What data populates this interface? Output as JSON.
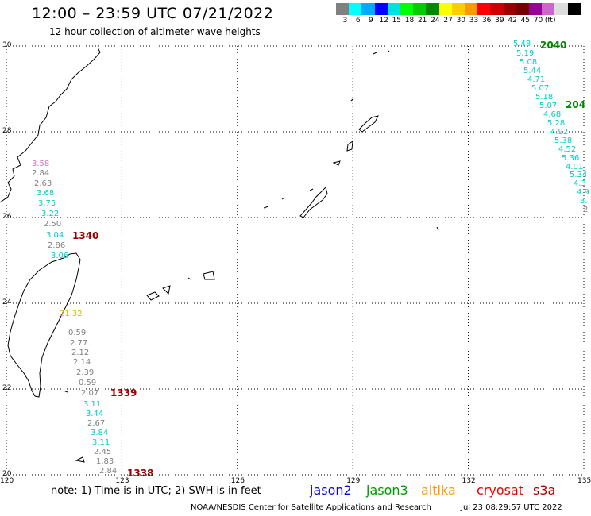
{
  "header": {
    "title": "12:00 – 23:59 UTC 07/21/2022",
    "subtitle": "12 hour collection of altimeter wave heights"
  },
  "legend": {
    "unit": "(ft)",
    "colors": [
      "#808080",
      "#00ffff",
      "#00aaff",
      "#0000ff",
      "#00e0e0",
      "#00ff00",
      "#00cc00",
      "#008800",
      "#ffff00",
      "#ffcc00",
      "#ff9900",
      "#ff0000",
      "#cc0000",
      "#990000",
      "#770000",
      "#990099",
      "#cc66cc",
      "#dddddd",
      "#000000"
    ],
    "labels": [
      "3",
      "6",
      "9",
      "12",
      "15",
      "18",
      "21",
      "24",
      "27",
      "30",
      "33",
      "36",
      "39",
      "42",
      "45",
      "70"
    ]
  },
  "axes": {
    "lon_labels": [
      "120",
      "123",
      "126",
      "129",
      "132",
      "135"
    ],
    "lat_labels": [
      "30",
      "28",
      "26",
      "24",
      "22",
      "20"
    ]
  },
  "passes": [
    {
      "label": "1340",
      "color": "#990000"
    },
    {
      "label": "1339",
      "color": "#990000"
    },
    {
      "label": "1338",
      "color": "#990000"
    },
    {
      "label": "2040",
      "color": "#008800"
    },
    {
      "label": "204",
      "color": "#008800"
    }
  ],
  "measurements_left": [
    {
      "v": "3.58",
      "c": "#cc77cc"
    },
    {
      "v": "2.84",
      "c": "#808080"
    },
    {
      "v": "2.63",
      "c": "#808080"
    },
    {
      "v": "3.68",
      "c": "#00cccc"
    },
    {
      "v": "3.75",
      "c": "#00cccc"
    },
    {
      "v": "3.22",
      "c": "#00cccc"
    },
    {
      "v": "2.50",
      "c": "#808080"
    },
    {
      "v": "3.04",
      "c": "#00cccc"
    },
    {
      "v": "2.86",
      "c": "#808080"
    },
    {
      "v": "3.06",
      "c": "#00cccc"
    },
    {
      "v": "21.32",
      "c": "#ddbb00"
    },
    {
      "v": "0.59",
      "c": "#808080"
    },
    {
      "v": "2.77",
      "c": "#808080"
    },
    {
      "v": "2.12",
      "c": "#808080"
    },
    {
      "v": "2.14",
      "c": "#808080"
    },
    {
      "v": "2.39",
      "c": "#808080"
    },
    {
      "v": "0.59",
      "c": "#808080"
    },
    {
      "v": "2.07",
      "c": "#808080"
    },
    {
      "v": "3.11",
      "c": "#00cccc"
    },
    {
      "v": "3.44",
      "c": "#00cccc"
    },
    {
      "v": "2.67",
      "c": "#808080"
    },
    {
      "v": "3.84",
      "c": "#00cccc"
    },
    {
      "v": "3.11",
      "c": "#00cccc"
    },
    {
      "v": "2.45",
      "c": "#808080"
    },
    {
      "v": "1.83",
      "c": "#808080"
    },
    {
      "v": "2.84",
      "c": "#808080"
    }
  ],
  "measurements_right": [
    {
      "v": "5.48",
      "c": "#00cccc"
    },
    {
      "v": "5.19",
      "c": "#00cccc"
    },
    {
      "v": "5.08",
      "c": "#00cccc"
    },
    {
      "v": "5.44",
      "c": "#00cccc"
    },
    {
      "v": "4.71",
      "c": "#00cccc"
    },
    {
      "v": "5.07",
      "c": "#00cccc"
    },
    {
      "v": "5.18",
      "c": "#00cccc"
    },
    {
      "v": "5.07",
      "c": "#00cccc"
    },
    {
      "v": "4.68",
      "c": "#00cccc"
    },
    {
      "v": "5.28",
      "c": "#00cccc"
    },
    {
      "v": "4.92",
      "c": "#00cccc"
    },
    {
      "v": "5.38",
      "c": "#00cccc"
    },
    {
      "v": "4.52",
      "c": "#00cccc"
    },
    {
      "v": "5.36",
      "c": "#00cccc"
    },
    {
      "v": "4.01",
      "c": "#00cccc"
    },
    {
      "v": "5.34",
      "c": "#00cccc"
    },
    {
      "v": "4.3",
      "c": "#00cccc"
    },
    {
      "v": "4.9",
      "c": "#00cccc"
    },
    {
      "v": "3.",
      "c": "#00cccc"
    },
    {
      "v": "2",
      "c": "#808080"
    }
  ],
  "footer": {
    "note": "note:  1) Time is in UTC;  2) SWH is in feet",
    "satellites": [
      {
        "name": "jason2",
        "color": "#0000ee"
      },
      {
        "name": "jason3",
        "color": "#009900"
      },
      {
        "name": "altika",
        "color": "#ff9900"
      },
      {
        "name": "cryosat",
        "color": "#ee0000"
      },
      {
        "name": "s3a",
        "color": "#aa0000"
      }
    ],
    "credit": "NOAA/NESDIS Center for Satellite Applications and Research",
    "timestamp": "Jul 23 08:29:57 UTC 2022"
  }
}
